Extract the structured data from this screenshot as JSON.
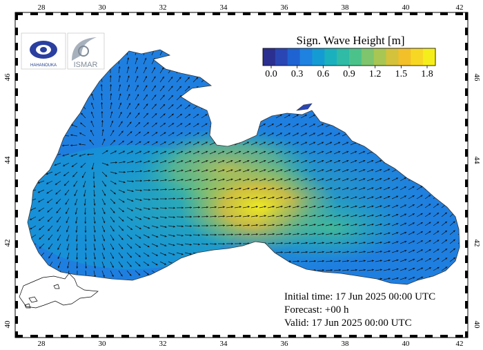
{
  "map": {
    "lon_labels": [
      "28",
      "30",
      "32",
      "34",
      "36",
      "38",
      "40",
      "42"
    ],
    "lat_labels": [
      "40",
      "42",
      "44",
      "46"
    ]
  },
  "colorbar": {
    "title": "Sign. Wave Height [m]",
    "labels": [
      "0.0",
      "0.3",
      "0.6",
      "0.9",
      "1.2",
      "1.5",
      "1.8"
    ],
    "colors": [
      "#2b2f8f",
      "#2a46b5",
      "#1f63d2",
      "#1f82e0",
      "#159bd3",
      "#1bb0bd",
      "#2fbba5",
      "#4cc28b",
      "#7ec56d",
      "#a8c653",
      "#d4c23c",
      "#f3c02a",
      "#f8d724",
      "#f6ee1c"
    ]
  },
  "logos": {
    "left_text": "HAHANOUKA",
    "right_text": "ISMAR"
  },
  "info": {
    "initial": "Initial time: 17 Jun 2025 00:00 UTC",
    "forecast": "Forecast: +00 h",
    "valid": "Valid: 17 Jun 2025 00:00 UTC"
  }
}
